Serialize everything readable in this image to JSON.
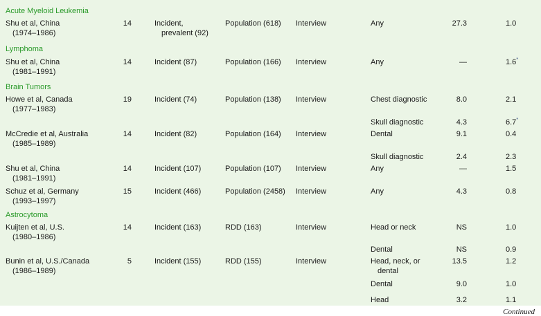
{
  "rows": [
    {
      "type": "section",
      "label": "Acute Myeloid Leukemia"
    },
    {
      "type": "data",
      "study": [
        "Shu et al, China",
        "(1974–1986)"
      ],
      "age": "14",
      "cases": [
        "Incident,",
        "prevalent (92)"
      ],
      "controls": "Population (618)",
      "method": "Interview",
      "exposure": [
        "Any"
      ],
      "pct": "27.3",
      "or": "1.0",
      "sig": false
    },
    {
      "type": "section",
      "label": "Lymphoma"
    },
    {
      "type": "data",
      "study": [
        "Shu et al, China",
        "(1981–1991)"
      ],
      "age": "14",
      "cases": [
        "Incident (87)"
      ],
      "controls": "Population (166)",
      "method": "Interview",
      "exposure": [
        "Any"
      ],
      "pct": "—",
      "or": "1.6",
      "sig": true
    },
    {
      "type": "section",
      "label": "Brain Tumors"
    },
    {
      "type": "data",
      "study": [
        "Howe et al, Canada",
        "(1977–1983)"
      ],
      "age": "19",
      "cases": [
        "Incident (74)"
      ],
      "controls": "Population (138)",
      "method": "Interview",
      "exposure": [
        "Chest diagnostic"
      ],
      "pct": "8.0",
      "or": "2.1",
      "sig": false
    },
    {
      "type": "data",
      "study": [],
      "age": "",
      "cases": [],
      "controls": "",
      "method": "",
      "exposure": [
        "Skull diagnostic"
      ],
      "pct": "4.3",
      "or": "6.7",
      "sig": true
    },
    {
      "type": "data",
      "study": [
        "McCredie et al, Australia",
        "(1985–1989)"
      ],
      "age": "14",
      "cases": [
        "Incident (82)"
      ],
      "controls": "Population (164)",
      "method": "Interview",
      "exposure": [
        "Dental"
      ],
      "pct": "9.1",
      "or": "0.4",
      "sig": false
    },
    {
      "type": "data",
      "study": [],
      "age": "",
      "cases": [],
      "controls": "",
      "method": "",
      "exposure": [
        "Skull diagnostic"
      ],
      "pct": "2.4",
      "or": "2.3",
      "sig": false
    },
    {
      "type": "data",
      "study": [
        "Shu et al, China",
        "(1981–1991)"
      ],
      "age": "14",
      "cases": [
        "Incident (107)"
      ],
      "controls": "Population (107)",
      "method": "Interview",
      "exposure": [
        "Any"
      ],
      "pct": "—",
      "or": "1.5",
      "sig": false
    },
    {
      "type": "data",
      "study": [
        "Schuz et al, Germany",
        "(1993–1997)"
      ],
      "age": "15",
      "cases": [
        "Incident (466)"
      ],
      "controls": "Population (2458)",
      "method": "Interview",
      "exposure": [
        "Any"
      ],
      "pct": "4.3",
      "or": "0.8",
      "sig": false
    },
    {
      "type": "section",
      "label": "Astrocytoma"
    },
    {
      "type": "data",
      "study": [
        "Kuijten et al, U.S.",
        "(1980–1986)"
      ],
      "age": "14",
      "cases": [
        "Incident (163)"
      ],
      "controls": "RDD (163)",
      "method": "Interview",
      "exposure": [
        "Head or neck"
      ],
      "pct": "NS",
      "or": "1.0",
      "sig": false
    },
    {
      "type": "data",
      "study": [],
      "age": "",
      "cases": [],
      "controls": "",
      "method": "",
      "exposure": [
        "Dental"
      ],
      "pct": "NS",
      "or": "0.9",
      "sig": false
    },
    {
      "type": "data",
      "study": [
        "Bunin et al, U.S./Canada",
        "(1986–1989)"
      ],
      "age": "5",
      "cases": [
        "Incident (155)"
      ],
      "controls": "RDD (155)",
      "method": "Interview",
      "exposure": [
        "Head, neck, or",
        "dental"
      ],
      "pct": "13.5",
      "or": "1.2",
      "sig": false
    },
    {
      "type": "data",
      "study": [],
      "age": "",
      "cases": [],
      "controls": "",
      "method": "",
      "exposure": [
        "Dental"
      ],
      "pct": "9.0",
      "or": "1.0",
      "sig": false
    },
    {
      "type": "data",
      "study": [],
      "age": "",
      "cases": [],
      "controls": "",
      "method": "",
      "exposure": [
        "Head"
      ],
      "pct": "3.2",
      "or": "1.1",
      "sig": false
    }
  ],
  "significance_marker": "*",
  "footer": {
    "continued": "Continued"
  },
  "colors": {
    "background": "#ebf5e6",
    "section_heading": "#2a9a2a"
  }
}
